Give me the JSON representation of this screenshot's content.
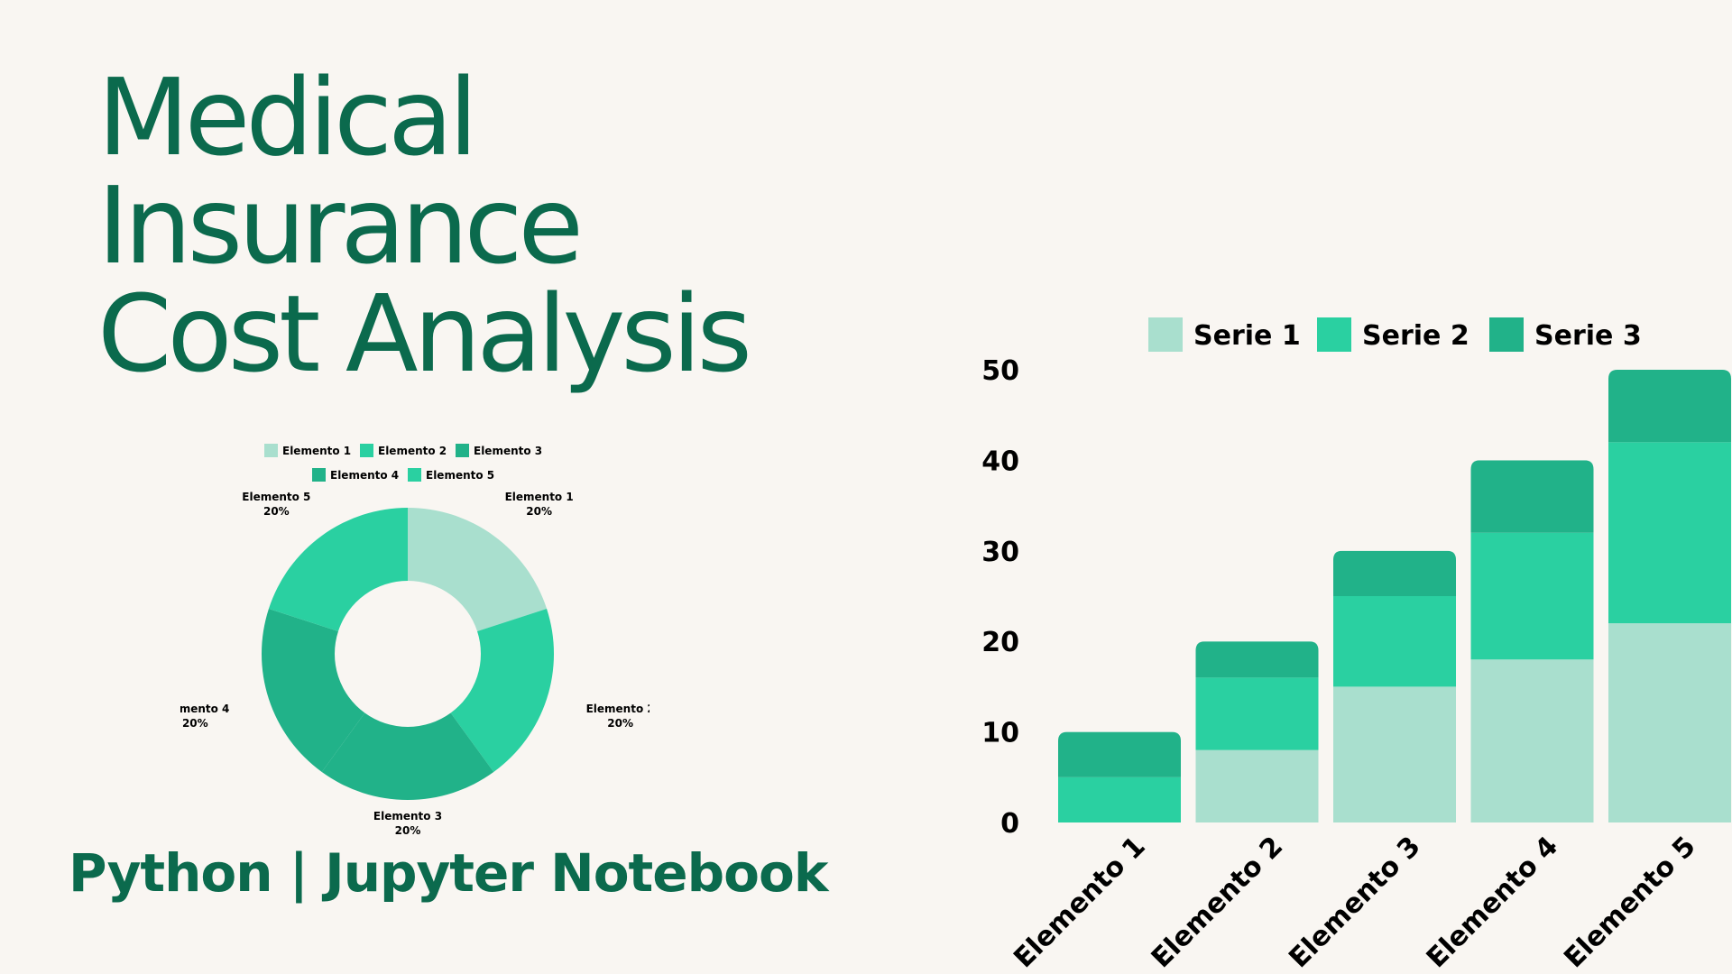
{
  "title_lines": [
    "Medical",
    "Insurance",
    "Cost Analysis"
  ],
  "subtitle": "Python | Jupyter Notebook",
  "colors": {
    "title": "#0b6a4d",
    "background": "#f9f6f2",
    "serie1": "#a9dfce",
    "serie2": "#2ad0a1",
    "serie3": "#21b289",
    "elemento1": "#a9dfce",
    "elemento2": "#2ad0a1",
    "elemento3": "#21b289",
    "elemento4": "#21b289",
    "elemento5": "#2ad0a1"
  },
  "chart_data": [
    {
      "type": "pie",
      "title": "",
      "legend_position": "top",
      "slices": [
        {
          "label": "Elemento 1",
          "value": 20,
          "percent_label": "20%",
          "color": "#a9dfce"
        },
        {
          "label": "Elemento 2",
          "value": 20,
          "percent_label": "20%",
          "color": "#2ad0a1"
        },
        {
          "label": "Elemento 3",
          "value": 20,
          "percent_label": "20%",
          "color": "#21b289"
        },
        {
          "label": "Elemento 4",
          "value": 20,
          "percent_label": "20%",
          "color": "#21b289"
        },
        {
          "label": "Elemento 5",
          "value": 20,
          "percent_label": "20%",
          "color": "#2ad0a1"
        }
      ]
    },
    {
      "type": "bar",
      "stacked": true,
      "title": "",
      "xlabel": "",
      "ylabel": "",
      "categories": [
        "Elemento 1",
        "Elemento 2",
        "Elemento 3",
        "Elemento 4",
        "Elemento 5"
      ],
      "series": [
        {
          "name": "Serie 1",
          "values": [
            0,
            8,
            15,
            18,
            22
          ],
          "color": "#a9dfce"
        },
        {
          "name": "Serie 2",
          "values": [
            5,
            8,
            10,
            14,
            20
          ],
          "color": "#2ad0a1"
        },
        {
          "name": "Serie 3",
          "values": [
            5,
            4,
            5,
            8,
            8
          ],
          "color": "#21b289"
        }
      ],
      "ylim": [
        0,
        50
      ],
      "yticks": [
        "0",
        "10",
        "20",
        "30",
        "40",
        "50"
      ],
      "grid": false,
      "legend_position": "top"
    }
  ]
}
